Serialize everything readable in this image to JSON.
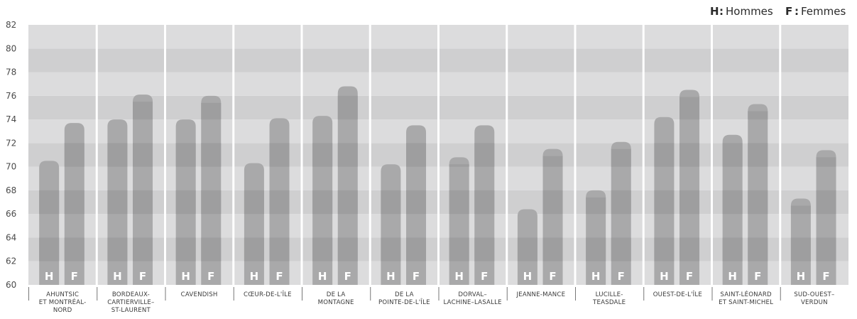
{
  "chart_data": {
    "type": "bar",
    "title": "",
    "xlabel": "",
    "ylabel": "",
    "ylim": [
      60,
      82
    ],
    "yticks": [
      60,
      62,
      64,
      66,
      68,
      70,
      72,
      74,
      76,
      78,
      80,
      82
    ],
    "grid": "horizontal alternating bands",
    "legend_position": "top-right",
    "legend": [
      {
        "key": "H",
        "sep": " : ",
        "label": "Hommes"
      },
      {
        "key": "F",
        "sep": " : ",
        "label": "Femmes"
      }
    ],
    "categories": [
      [
        "AHUNTSIC",
        "ET MONTRÉAL-",
        "NORD"
      ],
      [
        "BORDEAUX-",
        "CARTIERVILLE–",
        "ST-LAURENT"
      ],
      [
        "CAVENDISH"
      ],
      [
        "CŒUR-DE-L'ÎLE"
      ],
      [
        "DE LA",
        "MONTAGNE"
      ],
      [
        "DE LA",
        "POINTE-DE-L'ÎLE"
      ],
      [
        "DORVAL–",
        "LACHINE–LASALLE"
      ],
      [
        "JEANNE-MANCE"
      ],
      [
        "LUCILLE-",
        "TEASDALE"
      ],
      [
        "OUEST-DE-L'ÎLE"
      ],
      [
        "SAINT-LÉONARD",
        "ET SAINT-MICHEL"
      ],
      [
        "SUD-OUEST–",
        "VERDUN"
      ]
    ],
    "series": [
      {
        "name": "H",
        "values": [
          70.5,
          74.0,
          74.0,
          70.3,
          74.3,
          70.2,
          70.8,
          66.4,
          68.0,
          74.2,
          72.7,
          67.3
        ]
      },
      {
        "name": "F",
        "values": [
          73.7,
          76.1,
          76.0,
          74.1,
          76.8,
          73.5,
          73.5,
          71.5,
          72.1,
          76.5,
          75.3,
          71.4
        ]
      }
    ],
    "colors": {
      "band_light": "#dcdcdd",
      "band_dark": "#cfcfd0",
      "bar": "#a9a9aa",
      "bar_stripe": "#9e9e9f",
      "bar_label": "#ffffff"
    }
  }
}
